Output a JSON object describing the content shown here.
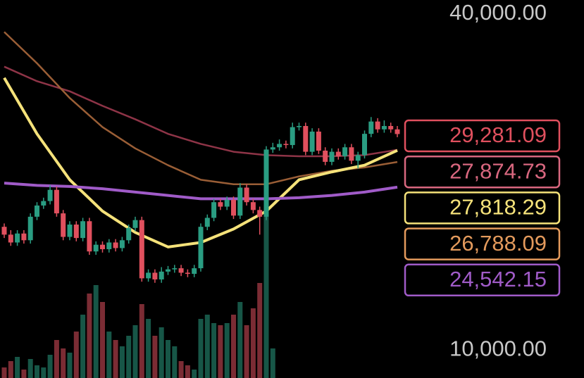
{
  "chart_data": {
    "type": "candlestick",
    "ylim": [
      7500,
      41250
    ],
    "yticks": [
      {
        "value": 40000,
        "label": "40,000.00"
      },
      {
        "value": 10000,
        "label": "10,000.00"
      }
    ],
    "up_color": "#2a9d82",
    "down_color": "#e0505e",
    "ohlc": [
      [
        21000,
        21300,
        20000,
        20300
      ],
      [
        20300,
        20700,
        19300,
        19600
      ],
      [
        19600,
        20700,
        19300,
        20400
      ],
      [
        20400,
        20700,
        19500,
        19800
      ],
      [
        19800,
        22200,
        19500,
        21900
      ],
      [
        21900,
        23200,
        21600,
        22900
      ],
      [
        22900,
        23600,
        22600,
        23300
      ],
      [
        23300,
        24700,
        23000,
        24300
      ],
      [
        24300,
        24600,
        21900,
        22200
      ],
      [
        22200,
        22500,
        19800,
        20100
      ],
      [
        20100,
        21500,
        19800,
        21200
      ],
      [
        21200,
        21500,
        19700,
        20000
      ],
      [
        20000,
        21800,
        19700,
        21500
      ],
      [
        21500,
        21800,
        18500,
        18800
      ],
      [
        18800,
        19700,
        18500,
        19400
      ],
      [
        19400,
        19700,
        18700,
        19000
      ],
      [
        19000,
        19900,
        18700,
        19600
      ],
      [
        19600,
        19900,
        18800,
        19100
      ],
      [
        19100,
        20100,
        18800,
        19800
      ],
      [
        19800,
        21200,
        19500,
        20900
      ],
      [
        20900,
        21900,
        20600,
        21600
      ],
      [
        21600,
        21900,
        16100,
        16400
      ],
      [
        16400,
        17200,
        16100,
        16900
      ],
      [
        16900,
        17200,
        16000,
        16300
      ],
      [
        16300,
        17400,
        16000,
        17000
      ],
      [
        17000,
        17500,
        16700,
        17200
      ],
      [
        17200,
        17600,
        16900,
        17300
      ],
      [
        17300,
        17600,
        16600,
        16900
      ],
      [
        16900,
        17200,
        16500,
        16800
      ],
      [
        16800,
        17600,
        16500,
        17300
      ],
      [
        17300,
        21300,
        17000,
        21000
      ],
      [
        21000,
        22100,
        20700,
        21800
      ],
      [
        21800,
        23500,
        21500,
        23200
      ],
      [
        23200,
        23500,
        22500,
        22800
      ],
      [
        22800,
        23700,
        22500,
        23400
      ],
      [
        23400,
        23700,
        21700,
        22000
      ],
      [
        22000,
        24900,
        21700,
        24500
      ],
      [
        24500,
        24800,
        22900,
        23200
      ],
      [
        23200,
        23500,
        22200,
        22500
      ],
      [
        22500,
        22800,
        20300,
        21900
      ],
      [
        21900,
        28200,
        21600,
        27900
      ],
      [
        27900,
        28500,
        27600,
        28100
      ],
      [
        28100,
        28800,
        27800,
        28400
      ],
      [
        28400,
        28700,
        28000,
        28300
      ],
      [
        28300,
        30300,
        28000,
        29900
      ],
      [
        29900,
        30300,
        29600,
        30000
      ],
      [
        30000,
        30300,
        27400,
        27700
      ],
      [
        27700,
        29800,
        27400,
        29500
      ],
      [
        29500,
        29800,
        27500,
        27800
      ],
      [
        27800,
        28100,
        26500,
        26800
      ],
      [
        26800,
        28000,
        26500,
        27700
      ],
      [
        27700,
        28000,
        27000,
        27300
      ],
      [
        27300,
        28400,
        27000,
        28100
      ],
      [
        28100,
        28400,
        26600,
        26900
      ],
      [
        26900,
        27700,
        26200,
        27400
      ],
      [
        27400,
        29600,
        27100,
        29300
      ],
      [
        29300,
        30800,
        29000,
        30400
      ],
      [
        30400,
        30700,
        29400,
        29700
      ],
      [
        29700,
        30500,
        29400,
        30000
      ],
      [
        30000,
        30300,
        29400,
        29700
      ],
      [
        29700,
        30000,
        29000,
        29281.09
      ]
    ],
    "volume": [
      5,
      8,
      10,
      4,
      9,
      6,
      5,
      11,
      18,
      14,
      12,
      22,
      30,
      40,
      44,
      36,
      22,
      18,
      15,
      20,
      25,
      35,
      28,
      20,
      24,
      18,
      15,
      8,
      6,
      4,
      28,
      30,
      26,
      25,
      26,
      30,
      36,
      25,
      33,
      45,
      100,
      14,
      null,
      null,
      null,
      null,
      null,
      null,
      null,
      null,
      null,
      null,
      null,
      null,
      null,
      null,
      null,
      null,
      null,
      null,
      null
    ],
    "ma_x": [
      0,
      5,
      10,
      15,
      20,
      25,
      30,
      35,
      40,
      45,
      50,
      55,
      60
    ],
    "series": [
      {
        "color": "#8e3447",
        "values": [
          35300,
          34000,
          33100,
          31800,
          30600,
          29300,
          28400,
          27700,
          27400,
          27300,
          27300,
          27400,
          27874.73
        ]
      },
      {
        "color": "#9a5e36",
        "values": [
          38400,
          35600,
          32500,
          29900,
          28000,
          26500,
          25200,
          24800,
          24800,
          25500,
          26000,
          26300,
          26788.09
        ]
      },
      {
        "color": "#f5e27a",
        "values": [
          34300,
          29300,
          25200,
          22400,
          20500,
          19200,
          19600,
          20800,
          22400,
          25200,
          25900,
          26500,
          27818.29
        ]
      },
      {
        "color": "#a05bc8",
        "values": [
          24900,
          24700,
          24600,
          24400,
          24100,
          23800,
          23500,
          23500,
          23500,
          23600,
          23800,
          24100,
          24542.15
        ]
      }
    ],
    "price_labels": [
      {
        "value": 29281.09,
        "label": "29,281.09",
        "color": "#e0505e"
      },
      {
        "value": 27874.73,
        "label": "27,874.73",
        "color": "#d8677f"
      },
      {
        "value": 27818.29,
        "label": "27,818.29",
        "color": "#f5e27a"
      },
      {
        "value": 26788.09,
        "label": "26,788.09",
        "color": "#e39a5c"
      },
      {
        "value": 24542.15,
        "label": "24,542.15",
        "color": "#a05bc8"
      }
    ]
  }
}
